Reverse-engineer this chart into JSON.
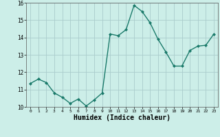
{
  "x": [
    0,
    1,
    2,
    3,
    4,
    5,
    6,
    7,
    8,
    9,
    10,
    11,
    12,
    13,
    14,
    15,
    16,
    17,
    18,
    19,
    20,
    21,
    22,
    23
  ],
  "y": [
    11.35,
    11.6,
    11.4,
    10.8,
    10.55,
    10.2,
    10.45,
    10.05,
    10.4,
    10.8,
    14.2,
    14.1,
    14.45,
    15.85,
    15.5,
    14.85,
    13.9,
    13.15,
    12.35,
    12.35,
    13.25,
    13.5,
    13.55,
    14.2
  ],
  "xlabel": "Humidex (Indice chaleur)",
  "ylim": [
    10,
    16
  ],
  "xlim": [
    -0.5,
    23.5
  ],
  "yticks": [
    10,
    11,
    12,
    13,
    14,
    15,
    16
  ],
  "xticks": [
    0,
    1,
    2,
    3,
    4,
    5,
    6,
    7,
    8,
    9,
    10,
    11,
    12,
    13,
    14,
    15,
    16,
    17,
    18,
    19,
    20,
    21,
    22,
    23
  ],
  "line_color": "#1a7a6a",
  "marker_color": "#1a7a6a",
  "bg_color": "#cceee8",
  "grid_color": "#aacccc",
  "xlabel_fontsize": 7,
  "xtick_fontsize": 4.5,
  "ytick_fontsize": 5.5,
  "linewidth": 1.0,
  "markersize": 2.0
}
